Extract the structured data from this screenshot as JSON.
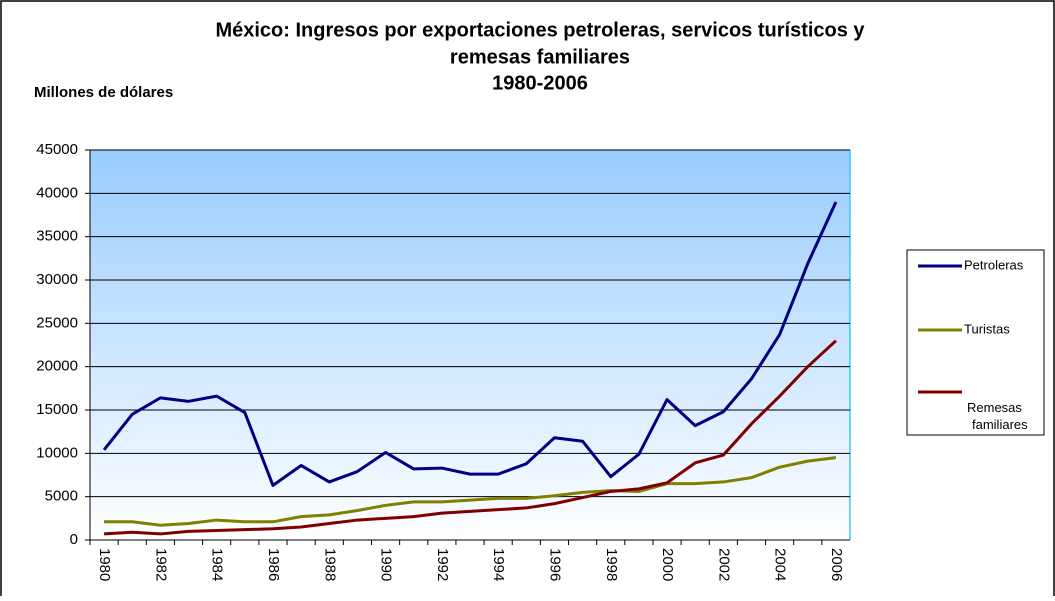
{
  "chart_data": {
    "type": "line",
    "title": [
      "México: Ingresos por exportaciones petroleras,  servicos turísticos y",
      "remesas familiares",
      "1980-2006"
    ],
    "y_label": "Millones de dólares",
    "categories": [
      "1980",
      null,
      "1982",
      null,
      "1984",
      null,
      "1986",
      null,
      "1988",
      null,
      "1990",
      null,
      "1992",
      null,
      "1994",
      null,
      "1996",
      null,
      "1998",
      null,
      "2000",
      null,
      "2002",
      null,
      "2004",
      null,
      "2006"
    ],
    "series": [
      {
        "name": "Petroleras",
        "color": "#000080",
        "values": [
          10400,
          14500,
          16400,
          16000,
          16600,
          14700,
          6300,
          8600,
          6700,
          7900,
          10100,
          8200,
          8300,
          7600,
          7600,
          8800,
          11800,
          11400,
          7300,
          9900,
          16200,
          13200,
          14800,
          18600,
          23700,
          31900,
          39000
        ]
      },
      {
        "name": "Turistas",
        "color": "#808000",
        "values": [
          2100,
          2100,
          1700,
          1900,
          2300,
          2100,
          2100,
          2700,
          2900,
          3400,
          4000,
          4400,
          4400,
          4600,
          4800,
          4800,
          5100,
          5500,
          5700,
          5600,
          6500,
          6500,
          6700,
          7200,
          8400,
          9100,
          9500
        ]
      },
      {
        "name": "Remesas familiares",
        "color": "#800000",
        "values": [
          700,
          900,
          700,
          1000,
          1100,
          1200,
          1300,
          1500,
          1900,
          2300,
          2500,
          2700,
          3100,
          3300,
          3500,
          3700,
          4200,
          4900,
          5600,
          5900,
          6600,
          8900,
          9800,
          13400,
          16600,
          20000,
          23000
        ]
      }
    ],
    "ylim": [
      0,
      45000
    ],
    "yticks": [
      0,
      5000,
      10000,
      15000,
      20000,
      25000,
      30000,
      35000,
      40000,
      45000
    ],
    "grid": true,
    "legend": "right"
  }
}
